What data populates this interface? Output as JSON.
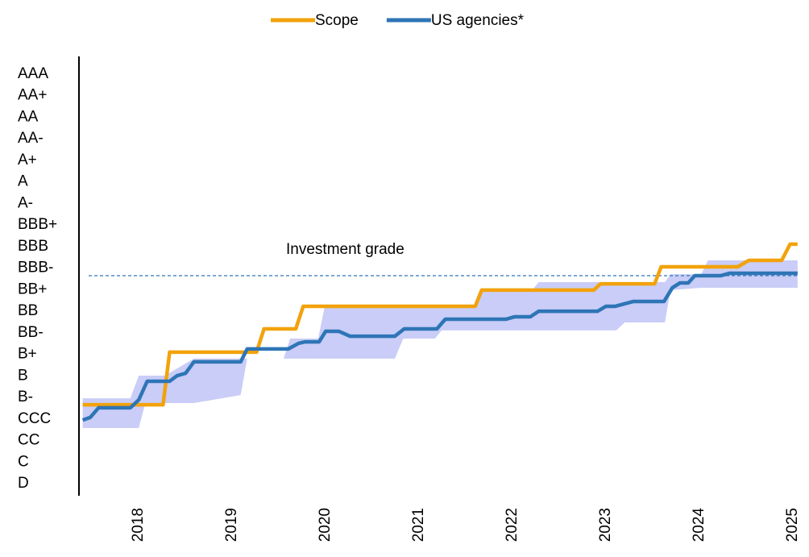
{
  "chart_data": {
    "type": "line",
    "annotation": "Investment grade",
    "reference_line": 9.65,
    "xlim": [
      2017.36,
      2025.06
    ],
    "xticks": [
      2018,
      2019,
      2020,
      2021,
      2022,
      2023,
      2024,
      2025
    ],
    "ylim": [
      -0.56,
      19.82
    ],
    "yticks": [
      {
        "value": 0,
        "label": "D"
      },
      {
        "value": 1,
        "label": "C"
      },
      {
        "value": 2,
        "label": "CC"
      },
      {
        "value": 3,
        "label": "CCC"
      },
      {
        "value": 4,
        "label": "B-"
      },
      {
        "value": 5,
        "label": "B"
      },
      {
        "value": 6,
        "label": "B+"
      },
      {
        "value": 7,
        "label": "BB-"
      },
      {
        "value": 8,
        "label": "BB"
      },
      {
        "value": 9,
        "label": "BB+"
      },
      {
        "value": 10,
        "label": "BBB-"
      },
      {
        "value": 11,
        "label": "BBB"
      },
      {
        "value": 12,
        "label": "BBB+"
      },
      {
        "value": 13,
        "label": "A-"
      },
      {
        "value": 14,
        "label": "A"
      },
      {
        "value": 15,
        "label": "A+"
      },
      {
        "value": 16,
        "label": "AA-"
      },
      {
        "value": 17,
        "label": "AA"
      },
      {
        "value": 18,
        "label": "AA+"
      },
      {
        "value": 19,
        "label": "AAA"
      }
    ],
    "band": {
      "color": "#c9cdf7",
      "x": [
        2017.4,
        2017.91,
        2018.0,
        2018.07,
        2018.28,
        2018.59,
        2019.09,
        2019.16,
        2019.55,
        2019.62,
        2019.92,
        2019.99,
        2020.74,
        2020.83,
        2021.17,
        2021.24,
        2021.6,
        2021.67,
        2022.21,
        2022.28,
        2023.11,
        2023.2,
        2023.63,
        2023.69,
        2024.02,
        2024.09,
        2025.05
      ],
      "high": [
        3.96,
        3.96,
        5.01,
        5.01,
        5.01,
        5.8,
        5.8,
        5.8,
        5.8,
        6.73,
        6.73,
        8.23,
        8.23,
        8.23,
        8.23,
        8.23,
        8.23,
        8.98,
        8.98,
        9.35,
        9.35,
        9.35,
        9.35,
        9.72,
        9.72,
        10.36,
        10.36
      ],
      "low": [
        2.58,
        2.58,
        2.58,
        3.74,
        3.74,
        3.74,
        4.11,
        5.8,
        5.8,
        5.8,
        5.8,
        5.8,
        5.8,
        6.73,
        6.73,
        7.11,
        7.11,
        7.11,
        7.11,
        7.11,
        7.11,
        7.48,
        7.48,
        8.98,
        9.09,
        9.09,
        9.09
      ]
    },
    "series": [
      {
        "name": "Scope",
        "color": "#f2a20c",
        "x": [
          2017.4,
          2018.26,
          2018.33,
          2019.26,
          2019.34,
          2019.68,
          2019.76,
          2021.6,
          2021.67,
          2022.87,
          2022.94,
          2023.52,
          2023.59,
          2024.41,
          2024.53,
          2024.88,
          2024.97,
          2025.05
        ],
        "values": [
          3.66,
          3.66,
          6.1,
          6.1,
          7.18,
          7.18,
          8.23,
          8.23,
          8.98,
          8.98,
          9.27,
          9.27,
          10.06,
          10.06,
          10.36,
          10.36,
          11.11,
          11.11
        ]
      },
      {
        "name": "US agencies*",
        "color": "#2e75b6",
        "x": [
          2017.4,
          2017.48,
          2017.57,
          2017.91,
          2018.0,
          2018.09,
          2018.33,
          2018.41,
          2018.5,
          2018.59,
          2019.09,
          2019.16,
          2019.6,
          2019.71,
          2019.78,
          2019.93,
          2020.0,
          2020.14,
          2020.26,
          2020.74,
          2020.84,
          2021.19,
          2021.28,
          2021.93,
          2022.02,
          2022.19,
          2022.28,
          2022.91,
          2023.0,
          2023.1,
          2023.29,
          2023.62,
          2023.71,
          2023.79,
          2023.88,
          2023.95,
          2024.23,
          2024.32,
          2025.05
        ],
        "values": [
          2.95,
          3.07,
          3.52,
          3.52,
          3.89,
          4.75,
          4.75,
          5.01,
          5.12,
          5.65,
          5.65,
          6.25,
          6.25,
          6.51,
          6.58,
          6.58,
          7.07,
          7.07,
          6.84,
          6.84,
          7.18,
          7.18,
          7.63,
          7.63,
          7.74,
          7.74,
          8.0,
          8.0,
          8.23,
          8.23,
          8.45,
          8.45,
          9.09,
          9.31,
          9.31,
          9.65,
          9.65,
          9.76,
          9.76
        ]
      }
    ]
  }
}
